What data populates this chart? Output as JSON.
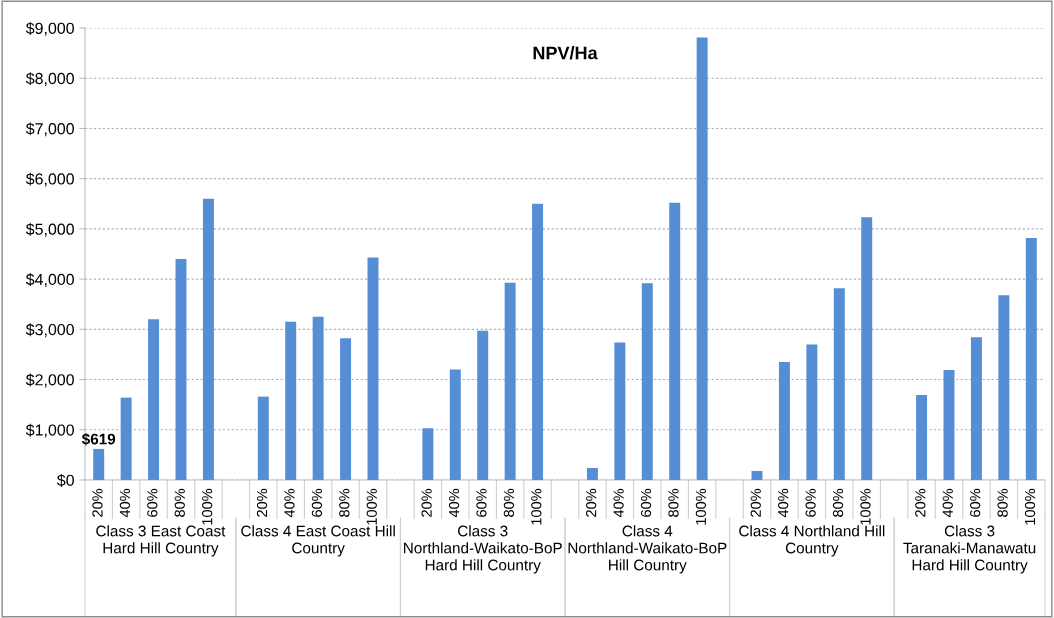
{
  "chart_data": {
    "type": "bar",
    "title": "NPV/Ha",
    "categories": [
      "20%",
      "40%",
      "60%",
      "80%",
      "100%",
      null,
      "20%",
      "40%",
      "60%",
      "80%",
      "100%",
      null,
      "20%",
      "40%",
      "60%",
      "80%",
      "100%",
      null,
      "20%",
      "40%",
      "60%",
      "80%",
      "100%",
      null,
      "20%",
      "40%",
      "60%",
      "80%",
      "100%",
      null,
      "20%",
      "40%",
      "60%",
      "80%",
      "100%"
    ],
    "values": [
      619,
      1640,
      3200,
      4400,
      5600,
      null,
      1660,
      3150,
      3250,
      2820,
      4430,
      null,
      1030,
      2200,
      2970,
      3930,
      5500,
      null,
      240,
      2740,
      3920,
      5520,
      8810,
      null,
      180,
      2350,
      2700,
      3820,
      5230,
      null,
      1690,
      2190,
      2840,
      3680,
      4820
    ],
    "value_labels": [
      "$619",
      null,
      null,
      null,
      null,
      null,
      null,
      null,
      null,
      null,
      null,
      null,
      null,
      null,
      null,
      null,
      null,
      null,
      null,
      null,
      null,
      null,
      null,
      null,
      null,
      null,
      null,
      null,
      null,
      null,
      null,
      null,
      null,
      null,
      null
    ],
    "color": "#558ed5",
    "ylim": [
      0,
      9000
    ],
    "yticks": [
      {
        "value": 0,
        "label": "$0"
      },
      {
        "value": 1000,
        "label": "$1,000"
      },
      {
        "value": 2000,
        "label": "$2,000"
      },
      {
        "value": 3000,
        "label": "$3,000"
      },
      {
        "value": 4000,
        "label": "$4,000"
      },
      {
        "value": 5000,
        "label": "$5,000"
      },
      {
        "value": 6000,
        "label": "$6,000"
      },
      {
        "value": 7000,
        "label": "$7,000"
      },
      {
        "value": 8000,
        "label": "$8,000"
      },
      {
        "value": 9000,
        "label": "$9,000"
      }
    ],
    "grid": "y",
    "annotations": [
      "Class 3 East Coast Hard Hill Country",
      "Class 4 East Coast Hill Country",
      "Class 3 Northland-Waikato-BoP Hard Hill Country",
      "Class 4 Northland-Waikato-BoP Hill Country",
      "Class 4 Northland Hill Country",
      "Class 3 Taranaki-Manawatu Hard Hill Country"
    ]
  }
}
